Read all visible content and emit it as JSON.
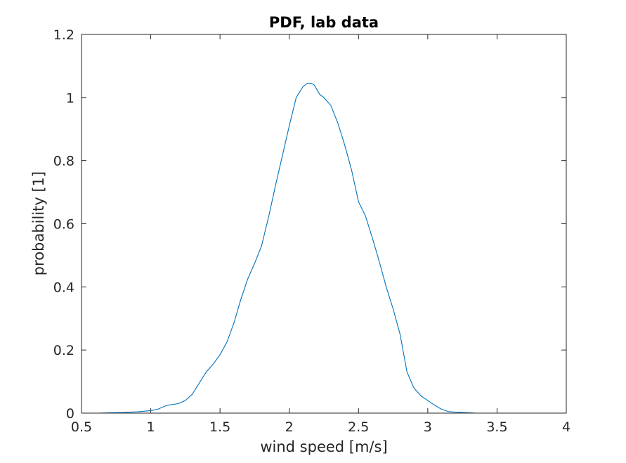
{
  "chart_data": {
    "type": "line",
    "title": "PDF, lab data",
    "xlabel": "wind speed [m/s]",
    "ylabel": "probability [1]",
    "xlim": [
      0.5,
      4
    ],
    "ylim": [
      0,
      1.2
    ],
    "xticks": [
      0.5,
      1,
      1.5,
      2,
      2.5,
      3,
      3.5,
      4
    ],
    "xtick_labels": [
      "0.5",
      "1",
      "1.5",
      "2",
      "2.5",
      "3",
      "3.5",
      "4"
    ],
    "yticks": [
      0,
      0.2,
      0.4,
      0.6,
      0.8,
      1,
      1.2
    ],
    "ytick_labels": [
      "0",
      "0.2",
      "0.4",
      "0.6",
      "0.8",
      "1",
      "1.2"
    ],
    "grid": false,
    "box": true,
    "line_color": "#0072BD",
    "series": [
      {
        "x": [
          0.62,
          0.7,
          0.8,
          0.9,
          1.0,
          1.05,
          1.08,
          1.12,
          1.15,
          1.2,
          1.25,
          1.3,
          1.35,
          1.4,
          1.45,
          1.5,
          1.55,
          1.6,
          1.65,
          1.7,
          1.75,
          1.8,
          1.85,
          1.9,
          1.95,
          2.0,
          2.05,
          2.1,
          2.13,
          2.16,
          2.18,
          2.2,
          2.22,
          2.25,
          2.3,
          2.35,
          2.4,
          2.45,
          2.5,
          2.55,
          2.6,
          2.65,
          2.7,
          2.75,
          2.8,
          2.85,
          2.9,
          2.95,
          3.0,
          3.05,
          3.1,
          3.15,
          3.2,
          3.25,
          3.3,
          3.35,
          3.4,
          3.5,
          3.6,
          3.66
        ],
        "y": [
          0.0,
          0.001,
          0.002,
          0.004,
          0.008,
          0.012,
          0.018,
          0.025,
          0.027,
          0.03,
          0.04,
          0.06,
          0.095,
          0.13,
          0.155,
          0.185,
          0.225,
          0.285,
          0.36,
          0.425,
          0.475,
          0.53,
          0.62,
          0.72,
          0.815,
          0.91,
          1.0,
          1.035,
          1.045,
          1.045,
          1.04,
          1.025,
          1.01,
          1.0,
          0.975,
          0.92,
          0.85,
          0.77,
          0.67,
          0.625,
          0.555,
          0.48,
          0.4,
          0.33,
          0.25,
          0.13,
          0.08,
          0.055,
          0.04,
          0.025,
          0.012,
          0.005,
          0.003,
          0.002,
          0.001,
          0.0,
          0.0,
          0.0,
          0.0,
          0.0
        ]
      }
    ]
  }
}
